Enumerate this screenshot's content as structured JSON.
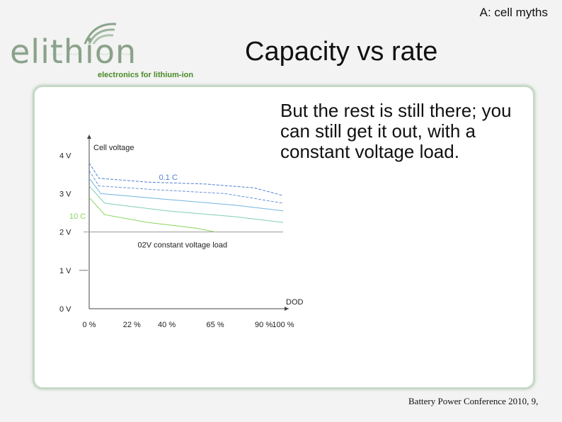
{
  "slide_tag": "A: cell myths",
  "logo": {
    "wordmark": "elithion",
    "tagline": "electronics for lithium-ion"
  },
  "title": "Capacity vs rate",
  "body_text": "But the rest is still there; you can still get it out, with a constant voltage load.",
  "footer": "Battery Power Conference 2010, 9,",
  "colors": {
    "panel_border": "#c6d9c6",
    "blue_series": "#4f7fd0",
    "green_series": "#8bd45a",
    "logo_green": "#8aa28a"
  },
  "chart_data": {
    "type": "line",
    "ylabel": "Cell voltage",
    "xlabel": "DOD",
    "yticks": [
      "4 V",
      "3 V",
      "2 V",
      "1 V",
      "0 V"
    ],
    "ytick_values": [
      4,
      3,
      2,
      1,
      0
    ],
    "xticks": [
      "0 %",
      "22 %",
      "40 %",
      "65 %",
      "90 %",
      "100 %"
    ],
    "xtick_values": [
      0,
      22,
      40,
      65,
      90,
      100
    ],
    "xlim": [
      0,
      100
    ],
    "ylim": [
      0,
      4.3
    ],
    "annotations": {
      "low_rate": "0.1 C",
      "high_rate": "10 C",
      "load_line": "02V constant voltage load"
    },
    "series": [
      {
        "rate": "0.1 C",
        "color": "#4f7fd0",
        "dash": true,
        "points": [
          [
            0,
            3.8
          ],
          [
            5,
            3.4
          ],
          [
            30,
            3.3
          ],
          [
            60,
            3.25
          ],
          [
            85,
            3.15
          ],
          [
            100,
            2.95
          ]
        ]
      },
      {
        "rate": "",
        "color": "#6a95dc",
        "dash": true,
        "points": [
          [
            0,
            3.6
          ],
          [
            5,
            3.2
          ],
          [
            35,
            3.1
          ],
          [
            70,
            3.0
          ],
          [
            100,
            2.75
          ]
        ]
      },
      {
        "rate": "",
        "color": "#6fb6e0",
        "dash": false,
        "points": [
          [
            0,
            3.4
          ],
          [
            6,
            3.0
          ],
          [
            40,
            2.85
          ],
          [
            75,
            2.7
          ],
          [
            100,
            2.55
          ]
        ]
      },
      {
        "rate": "",
        "color": "#7fcfb6",
        "dash": false,
        "points": [
          [
            0,
            3.2
          ],
          [
            8,
            2.75
          ],
          [
            40,
            2.55
          ],
          [
            75,
            2.4
          ],
          [
            100,
            2.25
          ]
        ]
      },
      {
        "rate": "10 C",
        "color": "#8bd45a",
        "dash": false,
        "points": [
          [
            0,
            2.9
          ],
          [
            8,
            2.45
          ],
          [
            30,
            2.25
          ],
          [
            55,
            2.1
          ],
          [
            65,
            2.0
          ]
        ]
      }
    ],
    "load_line_value": 2,
    "grid": false,
    "legend": "none"
  }
}
